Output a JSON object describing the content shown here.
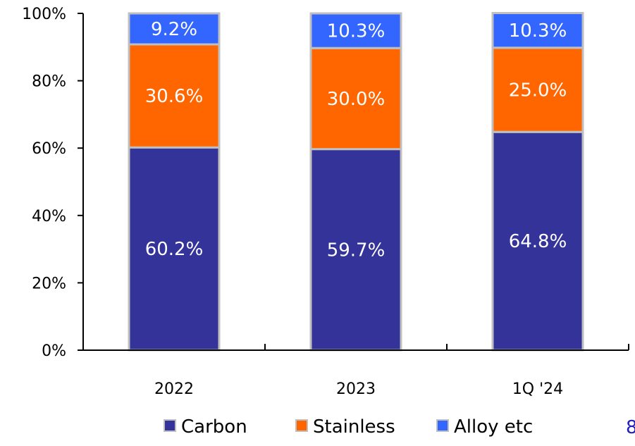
{
  "chart_data": {
    "type": "bar",
    "stacked": true,
    "categories": [
      "2022",
      "2023",
      "1Q '24"
    ],
    "series": [
      {
        "name": "Carbon",
        "values": [
          60.2,
          59.7,
          64.8
        ],
        "labels": [
          "60.2%",
          "59.7%",
          "64.8%"
        ],
        "color": "#333399"
      },
      {
        "name": "Stainless",
        "values": [
          30.6,
          30.0,
          25.0
        ],
        "labels": [
          "30.6%",
          "30.0%",
          "25.0%"
        ],
        "color": "#FF6600"
      },
      {
        "name": "Alloy etc",
        "values": [
          9.2,
          10.3,
          10.3
        ],
        "labels": [
          "9.2%",
          "10.3%",
          "10.3%"
        ],
        "color": "#3366FF"
      }
    ],
    "ylim": [
      0,
      100
    ],
    "yticks": [
      0,
      20,
      40,
      60,
      80,
      100
    ],
    "ytick_labels": [
      "0%",
      "20%",
      "40%",
      "60%",
      "80%",
      "100%"
    ],
    "title": "",
    "xlabel": "",
    "ylabel": "",
    "legend_position": "bottom",
    "grid": false,
    "bar_outline_color": "#BFBFBF"
  },
  "corner_label": {
    "text": "8",
    "color": "#1F1FBF"
  }
}
